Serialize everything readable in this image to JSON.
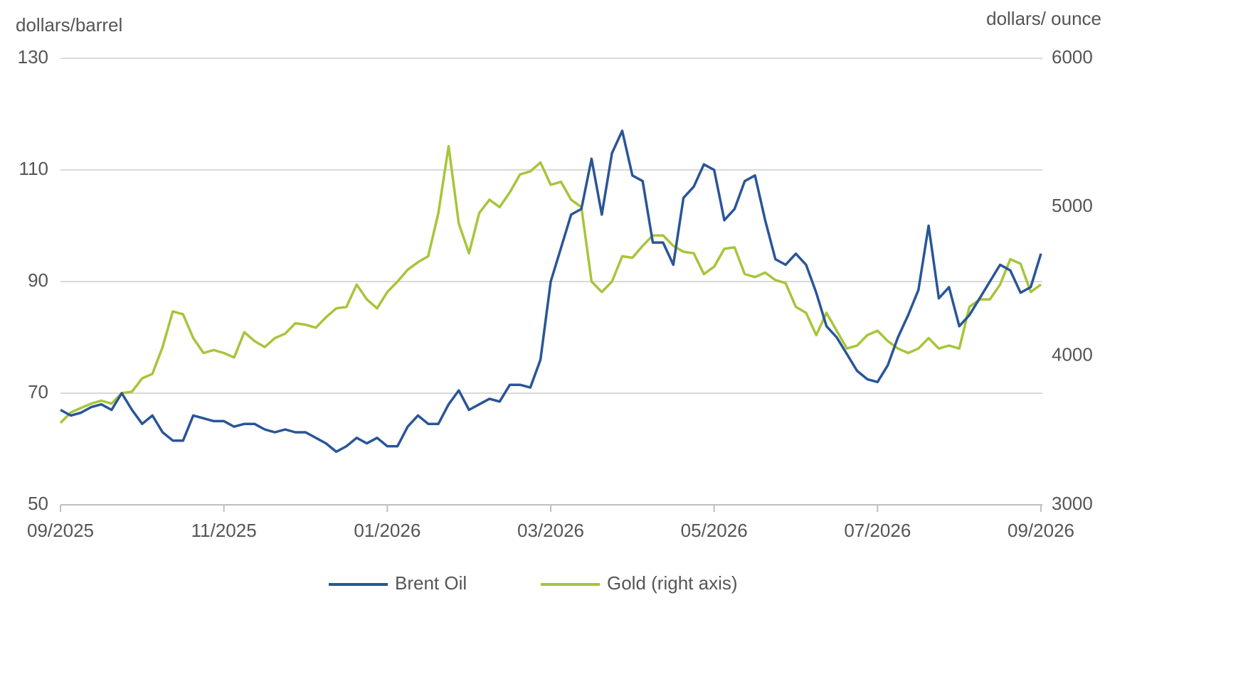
{
  "chart_data": {
    "type": "line",
    "y_label": "dollars/barrel",
    "y2_label": "dollars/ ounce",
    "categories": [
      "09/2025",
      null,
      null,
      null,
      null,
      null,
      null,
      null,
      null,
      null,
      null,
      null,
      null,
      null,
      null,
      null,
      "11/2025",
      null,
      null,
      null,
      null,
      null,
      null,
      null,
      null,
      null,
      null,
      null,
      null,
      null,
      null,
      null,
      "01/2026",
      null,
      null,
      null,
      null,
      null,
      null,
      null,
      null,
      null,
      null,
      null,
      null,
      null,
      null,
      null,
      "03/2026",
      null,
      null,
      null,
      null,
      null,
      null,
      null,
      null,
      null,
      null,
      null,
      null,
      null,
      null,
      null,
      "05/2026",
      null,
      null,
      null,
      null,
      null,
      null,
      null,
      null,
      null,
      null,
      null,
      null,
      null,
      null,
      null,
      "07/2026",
      null,
      null,
      null,
      null,
      null,
      null,
      null,
      null,
      null,
      null,
      null,
      null,
      null,
      null,
      null,
      "09/2026"
    ],
    "series": [
      {
        "name": "Brent Oil",
        "color": "#2a5597",
        "axis": "y",
        "values": [
          67,
          66,
          66.5,
          67.5,
          68,
          67,
          70,
          67,
          64.5,
          66,
          63,
          61.5,
          61.5,
          66,
          65.5,
          65,
          65,
          64,
          64.5,
          64.5,
          63.5,
          63,
          63.5,
          63,
          63,
          62,
          61,
          59.5,
          60.5,
          62,
          61,
          62,
          60.5,
          60.5,
          64,
          66,
          64.5,
          64.5,
          68,
          70.5,
          67,
          68,
          69,
          68.5,
          71.5,
          71.5,
          71,
          76,
          90,
          96,
          102,
          103,
          112,
          102,
          113,
          117,
          109,
          108,
          97,
          97,
          93,
          105,
          107,
          111,
          110,
          101,
          103,
          108,
          109,
          101,
          94,
          93,
          95,
          93,
          88,
          82,
          80,
          77,
          74,
          72.5,
          72,
          75,
          80,
          84,
          88.5,
          100,
          87,
          89,
          82,
          84,
          87,
          90,
          93,
          92,
          88,
          89,
          95
        ]
      },
      {
        "name": "Gold (right axis)",
        "color": "#a7c53a",
        "axis": "y2",
        "values": [
          3550,
          3620,
          3650,
          3680,
          3700,
          3680,
          3750,
          3760,
          3850,
          3880,
          4060,
          4300,
          4280,
          4120,
          4020,
          4040,
          4020,
          3990,
          4160,
          4100,
          4060,
          4120,
          4150,
          4220,
          4210,
          4190,
          4260,
          4320,
          4330,
          4480,
          4380,
          4320,
          4430,
          4500,
          4580,
          4630,
          4670,
          4960,
          5410,
          4890,
          4690,
          4960,
          5050,
          5000,
          5100,
          5220,
          5240,
          5300,
          5150,
          5170,
          5050,
          5000,
          4500,
          4430,
          4500,
          4670,
          4660,
          4740,
          4810,
          4810,
          4740,
          4700,
          4690,
          4550,
          4600,
          4720,
          4730,
          4550,
          4530,
          4560,
          4510,
          4490,
          4330,
          4290,
          4140,
          4290,
          4170,
          4050,
          4070,
          4140,
          4170,
          4100,
          4050,
          4020,
          4050,
          4120,
          4050,
          4070,
          4050,
          4330,
          4380,
          4380,
          4480,
          4650,
          4620,
          4430,
          4480
        ]
      }
    ],
    "ylim": [
      50,
      130
    ],
    "yticks": [
      50,
      70,
      90,
      110,
      130
    ],
    "y2lim": [
      3000,
      6000
    ],
    "y2ticks": [
      3000,
      4000,
      5000,
      6000
    ],
    "grid": true,
    "legend": "bottom"
  }
}
